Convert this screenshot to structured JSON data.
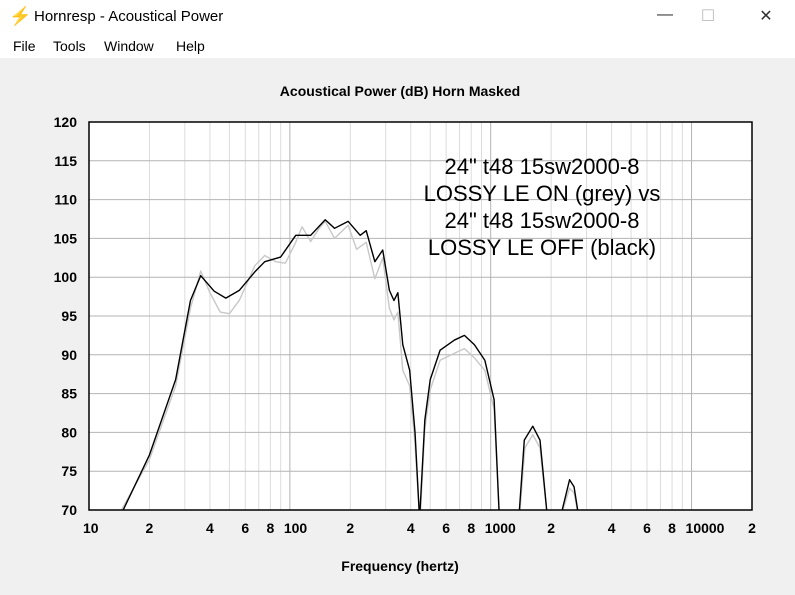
{
  "window": {
    "title": "Hornresp - Acoustical Power",
    "minimize": "—",
    "maximize": "☐",
    "close": "✕"
  },
  "menu": [
    "File",
    "Tools",
    "Window",
    "Help"
  ],
  "chart_data": {
    "type": "line",
    "title": "Acoustical Power (dB)   Horn   Masked",
    "xlabel": "Frequency (hertz)",
    "ylabel": "",
    "xscale": "log",
    "xlim": [
      10,
      20000
    ],
    "ylim": [
      70,
      120
    ],
    "yticks": [
      70,
      75,
      80,
      85,
      90,
      95,
      100,
      105,
      110,
      115,
      120
    ],
    "xtick_labels": [
      {
        "v": 10,
        "t": "10"
      },
      {
        "v": 20,
        "t": "2"
      },
      {
        "v": 40,
        "t": "4"
      },
      {
        "v": 60,
        "t": "6"
      },
      {
        "v": 80,
        "t": "8"
      },
      {
        "v": 100,
        "t": "100"
      },
      {
        "v": 200,
        "t": "2"
      },
      {
        "v": 400,
        "t": "4"
      },
      {
        "v": 600,
        "t": "6"
      },
      {
        "v": 800,
        "t": "8"
      },
      {
        "v": 1000,
        "t": "1000"
      },
      {
        "v": 2000,
        "t": "2"
      },
      {
        "v": 4000,
        "t": "4"
      },
      {
        "v": 6000,
        "t": "6"
      },
      {
        "v": 8000,
        "t": "8"
      },
      {
        "v": 10000,
        "t": "10000"
      },
      {
        "v": 20000,
        "t": "2"
      }
    ],
    "annotation": [
      "24\" t48 15sw2000-8",
      "LOSSY LE ON (grey) vs",
      "24\" t48 15sw2000-8",
      "LOSSY LE OFF (black)"
    ],
    "series": [
      {
        "name": "LOSSY LE ON (grey)",
        "color": "#c8c8c8",
        "segments": [
          [
            [
              14.5,
              70
            ],
            [
              20,
              76.5
            ],
            [
              27,
              86
            ],
            [
              32,
              96
            ],
            [
              36,
              100.8
            ],
            [
              40,
              98
            ],
            [
              45,
              95.5
            ],
            [
              50,
              95.3
            ],
            [
              56,
              97
            ],
            [
              67,
              101.5
            ],
            [
              75,
              102.8
            ],
            [
              85,
              102
            ],
            [
              95,
              101.8
            ],
            [
              107,
              104.5
            ],
            [
              115,
              106.5
            ],
            [
              127,
              104.6
            ],
            [
              140,
              106.3
            ],
            [
              150,
              107.2
            ],
            [
              167,
              105
            ],
            [
              195,
              106.7
            ],
            [
              215,
              103.6
            ],
            [
              240,
              104.5
            ],
            [
              265,
              99.8
            ],
            [
              290,
              102.5
            ],
            [
              313,
              96
            ],
            [
              330,
              94.5
            ],
            [
              345,
              95.5
            ],
            [
              365,
              88
            ],
            [
              395,
              86
            ],
            [
              420,
              78.5
            ],
            [
              440,
              70
            ]
          ],
          [
            [
              448,
              70
            ],
            [
              470,
              80.5
            ],
            [
              500,
              85.5
            ],
            [
              560,
              89.3
            ],
            [
              660,
              90.2
            ],
            [
              740,
              90.8
            ],
            [
              830,
              89.6
            ],
            [
              935,
              88
            ],
            [
              1040,
              83
            ],
            [
              1100,
              70
            ]
          ],
          [
            [
              1400,
              70
            ],
            [
              1480,
              78
            ],
            [
              1620,
              79.7
            ],
            [
              1760,
              78
            ],
            [
              1900,
              70
            ]
          ],
          [
            [
              2290,
              70
            ],
            [
              2470,
              72.8
            ],
            [
              2600,
              72.2
            ],
            [
              2700,
              70
            ]
          ]
        ]
      },
      {
        "name": "LOSSY LE OFF (black)",
        "color": "#000000",
        "segments": [
          [
            [
              14.8,
              70
            ],
            [
              20,
              77.1
            ],
            [
              27,
              86.8
            ],
            [
              32,
              97
            ],
            [
              36,
              100.2
            ],
            [
              42,
              98.2
            ],
            [
              48,
              97.3
            ],
            [
              56,
              98.3
            ],
            [
              67,
              100.7
            ],
            [
              75,
              102
            ],
            [
              90,
              102.6
            ],
            [
              107,
              105.4
            ],
            [
              127,
              105.4
            ],
            [
              150,
              107.4
            ],
            [
              167,
              106.3
            ],
            [
              195,
              107.2
            ],
            [
              224,
              105.4
            ],
            [
              240,
              106
            ],
            [
              265,
              102
            ],
            [
              290,
              103.5
            ],
            [
              313,
              98.3
            ],
            [
              330,
              97
            ],
            [
              345,
              98
            ],
            [
              365,
              91.3
            ],
            [
              395,
              88
            ],
            [
              420,
              80
            ],
            [
              440,
              70
            ]
          ],
          [
            [
              445,
              70
            ],
            [
              470,
              81.6
            ],
            [
              500,
              86.8
            ],
            [
              560,
              90.6
            ],
            [
              660,
              91.9
            ],
            [
              740,
              92.5
            ],
            [
              830,
              91.3
            ],
            [
              935,
              89.3
            ],
            [
              1040,
              84.2
            ],
            [
              1100,
              70
            ]
          ],
          [
            [
              1390,
              70
            ],
            [
              1470,
              79
            ],
            [
              1620,
              80.8
            ],
            [
              1760,
              79
            ],
            [
              1900,
              70
            ]
          ],
          [
            [
              2270,
              70
            ],
            [
              2470,
              73.9
            ],
            [
              2600,
              73
            ],
            [
              2710,
              70
            ]
          ]
        ]
      }
    ]
  }
}
